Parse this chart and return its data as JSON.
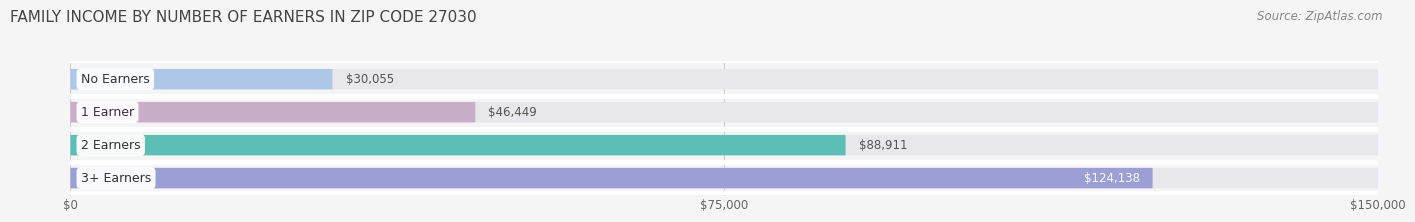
{
  "title": "FAMILY INCOME BY NUMBER OF EARNERS IN ZIP CODE 27030",
  "source": "Source: ZipAtlas.com",
  "categories": [
    "No Earners",
    "1 Earner",
    "2 Earners",
    "3+ Earners"
  ],
  "values": [
    30055,
    46449,
    88911,
    124138
  ],
  "labels": [
    "$30,055",
    "$46,449",
    "$88,911",
    "$124,138"
  ],
  "bar_colors": [
    "#aec6e8",
    "#c9aec8",
    "#5bbfb5",
    "#9b9fd4"
  ],
  "track_bg_color": "#e8e8ec",
  "xlim": [
    0,
    150000
  ],
  "xticks": [
    0,
    75000,
    150000
  ],
  "xticklabels": [
    "$0",
    "$75,000",
    "$150,000"
  ],
  "title_fontsize": 11,
  "source_fontsize": 8.5,
  "label_fontsize": 8.5,
  "category_fontsize": 9,
  "background_color": "#f5f5f5",
  "bar_height": 0.62,
  "label_color_inside": "#ffffff",
  "label_color_outside": "#555555",
  "grid_color": "#cccccc"
}
